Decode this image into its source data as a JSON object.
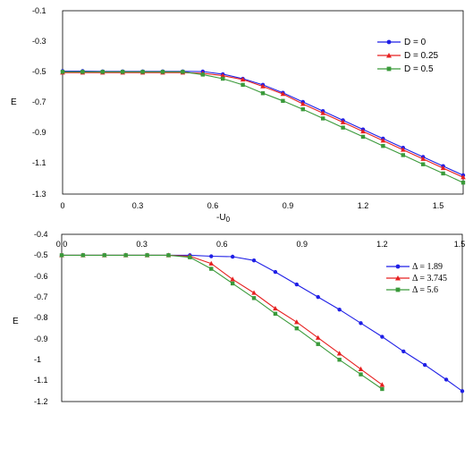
{
  "chart_data": [
    {
      "type": "line",
      "xlabel": "-U",
      "xlabel_sub": "0",
      "ylabel": "E",
      "xlim": [
        0,
        1.6
      ],
      "ylim": [
        -1.3,
        -0.1
      ],
      "xticks": [
        "0",
        "0.3",
        "0.6",
        "0.9",
        "1.2",
        "1.5"
      ],
      "yticks": [
        "-0.1",
        "-0.3",
        "-0.5",
        "-0.7",
        "-0.9",
        "-1.1",
        "-1.3"
      ],
      "legend_position": "top-right",
      "series": [
        {
          "name": "D = 0",
          "color": "#1f1fe6",
          "marker": "circle",
          "x": [
            0,
            0.08,
            0.16,
            0.24,
            0.32,
            0.4,
            0.48,
            0.56,
            0.64,
            0.72,
            0.8,
            0.88,
            0.96,
            1.04,
            1.12,
            1.2,
            1.28,
            1.36,
            1.44,
            1.52,
            1.6
          ],
          "y": [
            -0.495,
            -0.495,
            -0.497,
            -0.497,
            -0.497,
            -0.497,
            -0.497,
            -0.498,
            -0.515,
            -0.545,
            -0.585,
            -0.637,
            -0.697,
            -0.757,
            -0.817,
            -0.877,
            -0.937,
            -0.997,
            -1.057,
            -1.117,
            -1.177
          ]
        },
        {
          "name": "D = 0.25",
          "color": "#e62020",
          "marker": "triangle",
          "x": [
            0,
            0.08,
            0.16,
            0.24,
            0.32,
            0.4,
            0.48,
            0.56,
            0.64,
            0.72,
            0.8,
            0.88,
            0.96,
            1.04,
            1.12,
            1.2,
            1.28,
            1.36,
            1.44,
            1.52,
            1.6
          ],
          "y": [
            -0.505,
            -0.505,
            -0.505,
            -0.505,
            -0.505,
            -0.505,
            -0.505,
            -0.51,
            -0.525,
            -0.55,
            -0.595,
            -0.645,
            -0.71,
            -0.77,
            -0.83,
            -0.89,
            -0.95,
            -1.01,
            -1.07,
            -1.13,
            -1.19
          ]
        },
        {
          "name": "D = 0.5",
          "color": "#3a9a3a",
          "marker": "square",
          "x": [
            0,
            0.08,
            0.16,
            0.24,
            0.32,
            0.4,
            0.48,
            0.56,
            0.64,
            0.72,
            0.8,
            0.88,
            0.96,
            1.04,
            1.12,
            1.2,
            1.28,
            1.36,
            1.44,
            1.52,
            1.6
          ],
          "y": [
            -0.5,
            -0.5,
            -0.5,
            -0.5,
            -0.5,
            -0.5,
            -0.5,
            -0.518,
            -0.545,
            -0.585,
            -0.64,
            -0.69,
            -0.745,
            -0.805,
            -0.865,
            -0.925,
            -0.985,
            -1.045,
            -1.105,
            -1.165,
            -1.225
          ]
        }
      ]
    },
    {
      "type": "line",
      "ylabel": "E",
      "xlim": [
        0,
        1.5
      ],
      "ylim": [
        -1.2,
        -0.4
      ],
      "xticks": [
        "0.0",
        "0.3",
        "0.6",
        "0.9",
        "1.2",
        "1.5"
      ],
      "yticks": [
        "-0.4",
        "-0.5",
        "-0.6",
        "-0.7",
        "-0.8",
        "-0.9",
        "-1",
        "-1.1",
        "-1.2"
      ],
      "legend_position": "top-right",
      "series": [
        {
          "name": "Δ = 1.89",
          "color": "#1f1fe6",
          "marker": "circle",
          "x": [
            0,
            0.08,
            0.16,
            0.24,
            0.32,
            0.4,
            0.48,
            0.56,
            0.64,
            0.72,
            0.8,
            0.88,
            0.96,
            1.04,
            1.12,
            1.2,
            1.28,
            1.36,
            1.44,
            1.5
          ],
          "y": [
            -0.5,
            -0.5,
            -0.5,
            -0.5,
            -0.5,
            -0.5,
            -0.5,
            -0.505,
            -0.507,
            -0.525,
            -0.58,
            -0.64,
            -0.7,
            -0.76,
            -0.825,
            -0.89,
            -0.96,
            -1.025,
            -1.095,
            -1.15
          ]
        },
        {
          "name": "Δ = 3.745",
          "color": "#e62020",
          "marker": "triangle",
          "x": [
            0,
            0.08,
            0.16,
            0.24,
            0.32,
            0.4,
            0.48,
            0.56,
            0.64,
            0.72,
            0.8,
            0.88,
            0.96,
            1.04,
            1.12,
            1.2
          ],
          "y": [
            -0.5,
            -0.5,
            -0.5,
            -0.5,
            -0.5,
            -0.5,
            -0.505,
            -0.54,
            -0.615,
            -0.68,
            -0.755,
            -0.82,
            -0.895,
            -0.97,
            -1.045,
            -1.12
          ]
        },
        {
          "name": "Δ = 5.6",
          "color": "#3a9a3a",
          "marker": "square",
          "x": [
            0,
            0.08,
            0.16,
            0.24,
            0.32,
            0.4,
            0.48,
            0.56,
            0.64,
            0.72,
            0.8,
            0.88,
            0.96,
            1.04,
            1.12,
            1.2
          ],
          "y": [
            -0.5,
            -0.5,
            -0.5,
            -0.5,
            -0.5,
            -0.5,
            -0.51,
            -0.565,
            -0.635,
            -0.705,
            -0.78,
            -0.85,
            -0.925,
            -1.0,
            -1.07,
            -1.14
          ]
        }
      ]
    }
  ]
}
